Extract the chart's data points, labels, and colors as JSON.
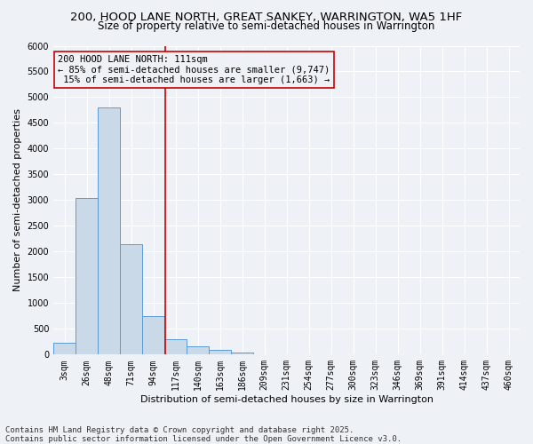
{
  "title_line1": "200, HOOD LANE NORTH, GREAT SANKEY, WARRINGTON, WA5 1HF",
  "title_line2": "Size of property relative to semi-detached houses in Warrington",
  "xlabel": "Distribution of semi-detached houses by size in Warrington",
  "ylabel": "Number of semi-detached properties",
  "categories": [
    "3sqm",
    "26sqm",
    "48sqm",
    "71sqm",
    "94sqm",
    "117sqm",
    "140sqm",
    "163sqm",
    "186sqm",
    "209sqm",
    "231sqm",
    "254sqm",
    "277sqm",
    "300sqm",
    "323sqm",
    "346sqm",
    "369sqm",
    "391sqm",
    "414sqm",
    "437sqm",
    "460sqm"
  ],
  "values": [
    230,
    3050,
    4800,
    2150,
    750,
    300,
    155,
    85,
    40,
    10,
    0,
    0,
    0,
    0,
    0,
    0,
    0,
    0,
    0,
    0,
    0
  ],
  "bar_color": "#c9d9e8",
  "bar_edge_color": "#5b9bd5",
  "ylim": [
    0,
    6000
  ],
  "yticks": [
    0,
    500,
    1000,
    1500,
    2000,
    2500,
    3000,
    3500,
    4000,
    4500,
    5000,
    5500,
    6000
  ],
  "property_label": "200 HOOD LANE NORTH: 111sqm",
  "pct_smaller": 85,
  "count_smaller": 9747,
  "pct_larger": 15,
  "count_larger": 1663,
  "vline_x_index": 4.52,
  "footer_line1": "Contains HM Land Registry data © Crown copyright and database right 2025.",
  "footer_line2": "Contains public sector information licensed under the Open Government Licence v3.0.",
  "bg_color": "#eef2f6",
  "grid_color": "#ffffff",
  "vline_color": "#cc0000",
  "annotation_border_color": "#cc0000",
  "title_fontsize": 9.5,
  "subtitle_fontsize": 8.5,
  "axis_label_fontsize": 8,
  "tick_fontsize": 7,
  "annotation_fontsize": 7.5,
  "footer_fontsize": 6.5
}
